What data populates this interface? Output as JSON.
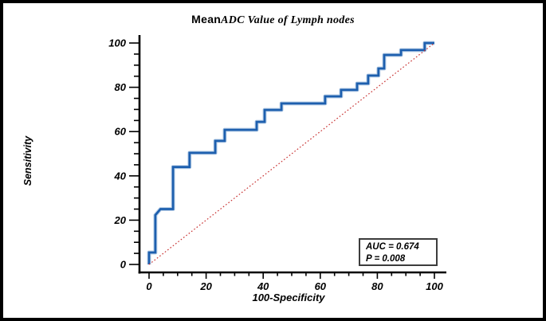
{
  "frame": {
    "background": "#ffffff",
    "border_color": "#000000"
  },
  "title": {
    "prefix": "Mean",
    "rest": "ADC Value of Lymph nodes"
  },
  "annotation_box": {
    "line1": "AUC = 0.674",
    "line2": "P = 0.008"
  },
  "colors": {
    "roc_curve": "#1d5fae",
    "roc_halo": "#bcd1e8",
    "reference_line": "#c83030",
    "axis": "#000000",
    "text": "#000000",
    "annotation_border": "#3c3c3c"
  },
  "chart_data": {
    "type": "line",
    "title": "MeanADC Value of Lymph nodes",
    "xlabel": "100-Specificity",
    "ylabel": "Sensitivity",
    "xlim": [
      0,
      100
    ],
    "ylim": [
      0,
      100
    ],
    "x_ticks": [
      0,
      20,
      40,
      60,
      80,
      100
    ],
    "y_ticks": [
      0,
      20,
      40,
      60,
      80,
      100
    ],
    "minor_tick_step": 5,
    "grid": false,
    "legend": "none",
    "annotations": [
      "AUC = 0.674",
      "P = 0.008"
    ],
    "series": [
      {
        "name": "ROC curve (MeanADC)",
        "kind": "step-roc",
        "color": "#1d5fae",
        "points": [
          [
            0,
            0
          ],
          [
            0,
            5.4
          ],
          [
            2.2,
            5.4
          ],
          [
            2.2,
            22.3
          ],
          [
            4,
            25
          ],
          [
            8.4,
            25
          ],
          [
            8.4,
            44
          ],
          [
            14.2,
            44
          ],
          [
            14.2,
            50.4
          ],
          [
            23.2,
            50.4
          ],
          [
            23.2,
            55.8
          ],
          [
            26.5,
            55.8
          ],
          [
            26.5,
            60.8
          ],
          [
            37.7,
            60.8
          ],
          [
            37.7,
            64.4
          ],
          [
            40.5,
            64.4
          ],
          [
            40.5,
            69.8
          ],
          [
            46.4,
            69.8
          ],
          [
            46.4,
            72.7
          ],
          [
            61.7,
            72.7
          ],
          [
            61.7,
            75.9
          ],
          [
            67.3,
            75.9
          ],
          [
            67.3,
            78.8
          ],
          [
            72.9,
            78.8
          ],
          [
            72.9,
            81.7
          ],
          [
            76.8,
            81.7
          ],
          [
            76.8,
            85.3
          ],
          [
            80.4,
            85.3
          ],
          [
            80.4,
            88.5
          ],
          [
            82.4,
            88.5
          ],
          [
            82.4,
            94.6
          ],
          [
            88.3,
            94.6
          ],
          [
            88.3,
            96.8
          ],
          [
            96.6,
            96.8
          ],
          [
            96.6,
            100
          ],
          [
            100,
            100
          ]
        ]
      },
      {
        "name": "reference diagonal",
        "kind": "dotted-diagonal",
        "color": "#c83030",
        "points": [
          [
            0,
            0
          ],
          [
            100,
            100
          ]
        ]
      }
    ]
  }
}
